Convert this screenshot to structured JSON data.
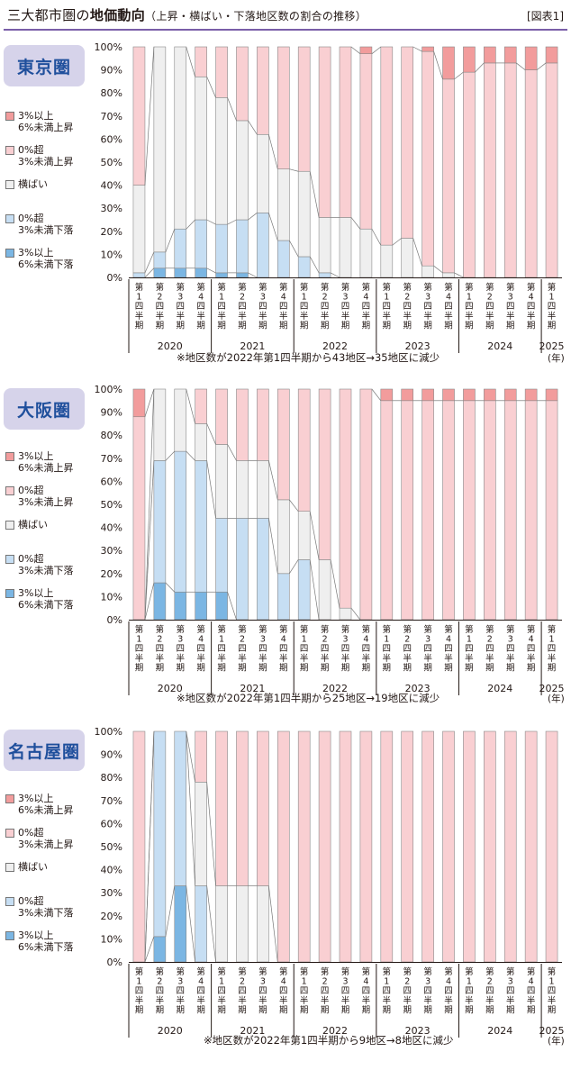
{
  "header": {
    "title_main": "三大都市圏の",
    "title_bold": "地価動向",
    "title_sub": "（上昇・横ばい・下落地区数の割合の推移）",
    "figure_ref": "[図表1]"
  },
  "legend": [
    {
      "label": "3%以上\n6%未満上昇",
      "color": "#f29c9c"
    },
    {
      "label": "0%超\n3%未満上昇",
      "color": "#f9cfd2"
    },
    {
      "label": "横ばい",
      "color": "#efefef"
    },
    {
      "label": "0%超\n3%未満下落",
      "color": "#c6def3"
    },
    {
      "label": "3%以上\n6%未満下落",
      "color": "#7bb6e3"
    }
  ],
  "x_year_unit": "(年)",
  "chart_data": [
    {
      "type": "bar",
      "stacked": true,
      "title": "東京圏",
      "ylim": [
        0,
        100
      ],
      "yticks": [
        "0%",
        "10%",
        "20%",
        "30%",
        "40%",
        "50%",
        "60%",
        "70%",
        "80%",
        "90%",
        "100%"
      ],
      "categories": [
        "第1四半期",
        "第2四半期",
        "第3四半期",
        "第4四半期",
        "第1四半期",
        "第2四半期",
        "第3四半期",
        "第4四半期",
        "第1四半期",
        "第2四半期",
        "第3四半期",
        "第4四半期",
        "第1四半期",
        "第2四半期",
        "第3四半期",
        "第4四半期",
        "第1四半期",
        "第2四半期",
        "第3四半期",
        "第4四半期",
        "第1四半期"
      ],
      "years": [
        {
          "label": "2020",
          "start": 0,
          "end": 3
        },
        {
          "label": "2021",
          "start": 4,
          "end": 7
        },
        {
          "label": "2022",
          "start": 8,
          "end": 11
        },
        {
          "label": "2023",
          "start": 12,
          "end": 15
        },
        {
          "label": "2024",
          "start": 16,
          "end": 19
        },
        {
          "label": "2025",
          "start": 20,
          "end": 20
        }
      ],
      "series": [
        {
          "name": "3%以上6%未満下落",
          "values": [
            0,
            4,
            4,
            4,
            2,
            2,
            0,
            0,
            0,
            0,
            0,
            0,
            0,
            0,
            0,
            0,
            0,
            0,
            0,
            0,
            0
          ]
        },
        {
          "name": "0%超3%未満下落",
          "values": [
            2,
            7,
            17,
            21,
            21,
            23,
            28,
            16,
            9,
            2,
            0,
            0,
            0,
            0,
            0,
            0,
            0,
            0,
            0,
            0,
            0
          ]
        },
        {
          "name": "横ばい",
          "values": [
            38,
            89,
            79,
            62,
            55,
            43,
            34,
            31,
            37,
            24,
            26,
            21,
            14,
            17,
            5,
            2,
            0,
            0,
            0,
            0,
            0
          ]
        },
        {
          "name": "0%超3%未満上昇",
          "values": [
            60,
            0,
            0,
            13,
            22,
            32,
            38,
            53,
            54,
            74,
            74,
            76,
            86,
            83,
            93,
            84,
            89,
            93,
            93,
            90,
            93
          ]
        },
        {
          "name": "3%以上6%未満上昇",
          "values": [
            0,
            0,
            0,
            0,
            0,
            0,
            0,
            0,
            0,
            0,
            0,
            3,
            0,
            0,
            2,
            14,
            11,
            7,
            7,
            10,
            7
          ]
        }
      ],
      "note": "※地区数が2022年第1四半期から43地区→35地区に減少"
    },
    {
      "type": "bar",
      "stacked": true,
      "title": "大阪圏",
      "ylim": [
        0,
        100
      ],
      "yticks": [
        "0%",
        "10%",
        "20%",
        "30%",
        "40%",
        "50%",
        "60%",
        "70%",
        "80%",
        "90%",
        "100%"
      ],
      "categories": [
        "第1四半期",
        "第2四半期",
        "第3四半期",
        "第4四半期",
        "第1四半期",
        "第2四半期",
        "第3四半期",
        "第4四半期",
        "第1四半期",
        "第2四半期",
        "第3四半期",
        "第4四半期",
        "第1四半期",
        "第2四半期",
        "第3四半期",
        "第4四半期",
        "第1四半期",
        "第2四半期",
        "第3四半期",
        "第4四半期",
        "第1四半期"
      ],
      "years": [
        {
          "label": "2020",
          "start": 0,
          "end": 3
        },
        {
          "label": "2021",
          "start": 4,
          "end": 7
        },
        {
          "label": "2022",
          "start": 8,
          "end": 11
        },
        {
          "label": "2023",
          "start": 12,
          "end": 15
        },
        {
          "label": "2024",
          "start": 16,
          "end": 19
        },
        {
          "label": "2025",
          "start": 20,
          "end": 20
        }
      ],
      "series": [
        {
          "name": "3%以上6%未満下落",
          "values": [
            0,
            16,
            12,
            12,
            12,
            0,
            0,
            0,
            0,
            0,
            0,
            0,
            0,
            0,
            0,
            0,
            0,
            0,
            0,
            0,
            0
          ]
        },
        {
          "name": "0%超3%未満下落",
          "values": [
            0,
            53,
            61,
            57,
            32,
            44,
            44,
            20,
            26,
            0,
            0,
            0,
            0,
            0,
            0,
            0,
            0,
            0,
            0,
            0,
            0
          ]
        },
        {
          "name": "横ばい",
          "values": [
            0,
            31,
            27,
            16,
            32,
            25,
            25,
            32,
            21,
            26,
            5,
            0,
            0,
            0,
            0,
            0,
            0,
            0,
            0,
            0,
            0
          ]
        },
        {
          "name": "0%超3%未満上昇",
          "values": [
            88,
            0,
            0,
            15,
            24,
            31,
            31,
            48,
            53,
            74,
            95,
            100,
            95,
            95,
            95,
            95,
            95,
            95,
            95,
            95,
            95
          ]
        },
        {
          "name": "3%以上6%未満上昇",
          "values": [
            12,
            0,
            0,
            0,
            0,
            0,
            0,
            0,
            0,
            0,
            0,
            0,
            5,
            5,
            5,
            5,
            5,
            5,
            5,
            5,
            5
          ]
        }
      ],
      "note": "※地区数が2022年第1四半期から25地区→19地区に減少"
    },
    {
      "type": "bar",
      "stacked": true,
      "title": "名古屋圏",
      "ylim": [
        0,
        100
      ],
      "yticks": [
        "0%",
        "10%",
        "20%",
        "30%",
        "40%",
        "50%",
        "60%",
        "70%",
        "80%",
        "90%",
        "100%"
      ],
      "categories": [
        "第1四半期",
        "第2四半期",
        "第3四半期",
        "第4四半期",
        "第1四半期",
        "第2四半期",
        "第3四半期",
        "第4四半期",
        "第1四半期",
        "第2四半期",
        "第3四半期",
        "第4四半期",
        "第1四半期",
        "第2四半期",
        "第3四半期",
        "第4四半期",
        "第1四半期",
        "第2四半期",
        "第3四半期",
        "第4四半期",
        "第1四半期"
      ],
      "years": [
        {
          "label": "2020",
          "start": 0,
          "end": 3
        },
        {
          "label": "2021",
          "start": 4,
          "end": 7
        },
        {
          "label": "2022",
          "start": 8,
          "end": 11
        },
        {
          "label": "2023",
          "start": 12,
          "end": 15
        },
        {
          "label": "2024",
          "start": 16,
          "end": 19
        },
        {
          "label": "2025",
          "start": 20,
          "end": 20
        }
      ],
      "series": [
        {
          "name": "3%以上6%未満下落",
          "values": [
            0,
            11,
            33,
            0,
            0,
            0,
            0,
            0,
            0,
            0,
            0,
            0,
            0,
            0,
            0,
            0,
            0,
            0,
            0,
            0,
            0
          ]
        },
        {
          "name": "0%超3%未満下落",
          "values": [
            0,
            89,
            67,
            33,
            0,
            0,
            0,
            0,
            0,
            0,
            0,
            0,
            0,
            0,
            0,
            0,
            0,
            0,
            0,
            0,
            0
          ]
        },
        {
          "name": "横ばい",
          "values": [
            0,
            0,
            0,
            45,
            33,
            33,
            33,
            0,
            0,
            0,
            0,
            0,
            0,
            0,
            0,
            0,
            0,
            0,
            0,
            0,
            0
          ]
        },
        {
          "name": "0%超3%未満上昇",
          "values": [
            100,
            0,
            0,
            22,
            67,
            67,
            67,
            100,
            100,
            100,
            100,
            100,
            100,
            100,
            100,
            100,
            100,
            100,
            100,
            100,
            100
          ]
        },
        {
          "name": "3%以上6%未満上昇",
          "values": [
            0,
            0,
            0,
            0,
            0,
            0,
            0,
            0,
            0,
            0,
            0,
            0,
            0,
            0,
            0,
            0,
            0,
            0,
            0,
            0,
            0
          ]
        }
      ],
      "note": "※地区数が2022年第1四半期から9地区→8地区に減少"
    }
  ]
}
